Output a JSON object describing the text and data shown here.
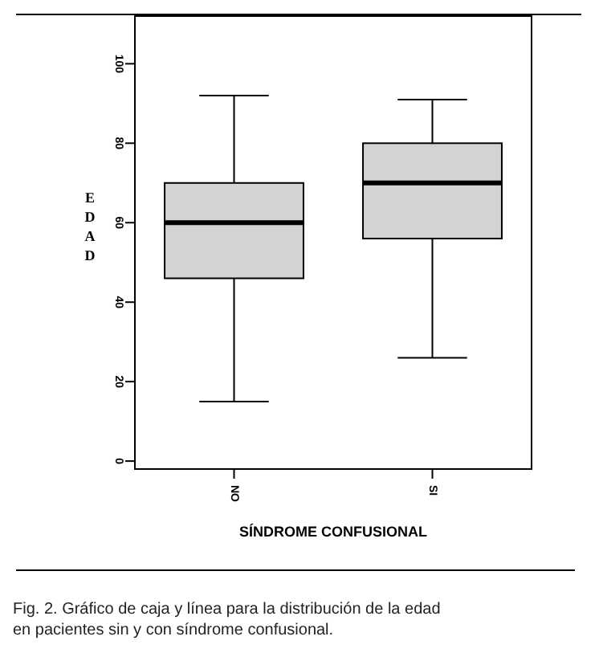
{
  "chart_data": {
    "type": "box",
    "xlabel": "SÍNDROME CONFUSIONAL",
    "ylabel": "EDAD",
    "categories": [
      "NO",
      "SI"
    ],
    "boxes": [
      {
        "low": 15,
        "q1": 46,
        "median": 60,
        "q3": 70,
        "high": 92
      },
      {
        "low": 26,
        "q1": 56,
        "median": 70,
        "q3": 80,
        "high": 91
      }
    ],
    "color": "#d3d3d3",
    "ylim": [
      -2,
      112
    ],
    "yticks": [
      0,
      20,
      40,
      60,
      80,
      100
    ],
    "grid": false,
    "annotations": [
      "Fig. 2. Gráfico de caja y línea para la distribución de la edad en pacientes sin y con síndrome confusional."
    ]
  }
}
